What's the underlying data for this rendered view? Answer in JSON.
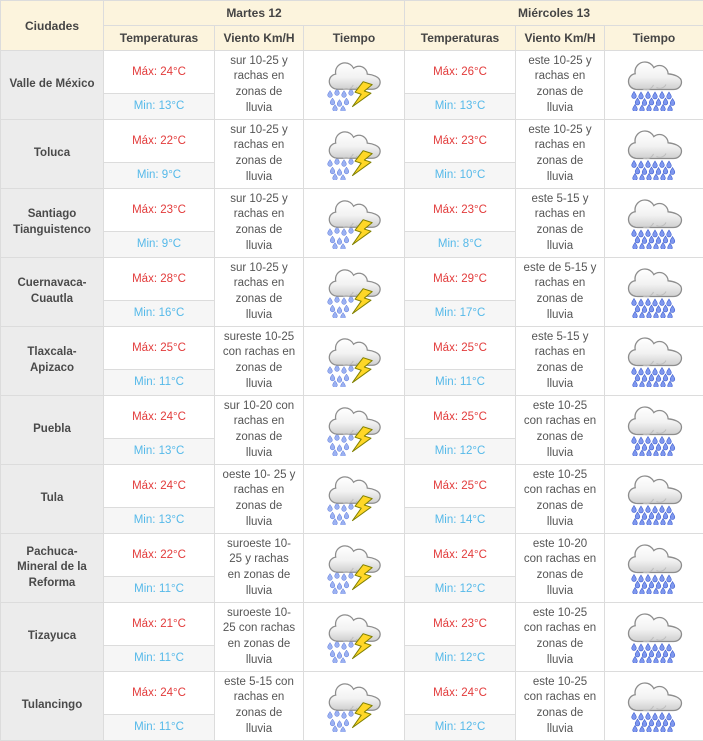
{
  "header": {
    "city": "Ciudades",
    "day_groups": [
      {
        "label": "Martes 12"
      },
      {
        "label": "Miércoles 13"
      }
    ],
    "sub_columns": [
      "Temperaturas",
      "Viento Km/H",
      "Tiempo"
    ]
  },
  "table": {
    "rows": [
      {
        "city": "Valle de México",
        "days": [
          {
            "max": "Máx: 24°C",
            "min": "Min: 13°C",
            "wind": "sur 10-25 y rachas en zonas de lluvia",
            "icon": "storm-rain-icon"
          },
          {
            "max": "Máx: 26°C",
            "min": "Min: 13°C",
            "wind": "este 10-25 y rachas en zonas de lluvia",
            "icon": "heavy-rain-icon"
          }
        ]
      },
      {
        "city": "Toluca",
        "days": [
          {
            "max": "Máx: 22°C",
            "min": "Min: 9°C",
            "wind": "sur 10-25 y rachas en zonas de lluvia",
            "icon": "storm-rain-icon"
          },
          {
            "max": "Máx: 23°C",
            "min": "Min: 10°C",
            "wind": "este 10-25 y rachas en zonas de lluvia",
            "icon": "heavy-rain-icon"
          }
        ]
      },
      {
        "city": "Santiago Tianguistenco",
        "days": [
          {
            "max": "Máx: 23°C",
            "min": "Min: 9°C",
            "wind": "sur 10-25 y rachas en zonas de lluvia",
            "icon": "storm-rain-icon"
          },
          {
            "max": "Máx: 23°C",
            "min": "Min: 8°C",
            "wind": "este 5-15 y rachas en zonas de lluvia",
            "icon": "heavy-rain-icon"
          }
        ]
      },
      {
        "city": "Cuernavaca-Cuautla",
        "days": [
          {
            "max": "Máx: 28°C",
            "min": "Min: 16°C",
            "wind": "sur 10-25 y rachas en zonas de lluvia",
            "icon": "storm-rain-icon"
          },
          {
            "max": "Máx: 29°C",
            "min": "Min: 17°C",
            "wind": "este de 5-15 y rachas en zonas de lluvia",
            "icon": "heavy-rain-icon"
          }
        ]
      },
      {
        "city": "Tlaxcala-Apizaco",
        "days": [
          {
            "max": "Máx: 25°C",
            "min": "Min: 11°C",
            "wind": "sureste 10-25 con rachas en zonas de lluvia",
            "icon": "storm-rain-icon"
          },
          {
            "max": "Máx: 25°C",
            "min": "Min: 11°C",
            "wind": "este 5-15 y rachas en zonas de lluvia",
            "icon": "heavy-rain-icon"
          }
        ]
      },
      {
        "city": "Puebla",
        "days": [
          {
            "max": "Máx: 24°C",
            "min": "Min: 13°C",
            "wind": "sur 10-20  con rachas en zonas de lluvia",
            "icon": "storm-rain-icon"
          },
          {
            "max": "Máx: 25°C",
            "min": "Min: 12°C",
            "wind": "este 10-25 con rachas en zonas de lluvia",
            "icon": "heavy-rain-icon"
          }
        ]
      },
      {
        "city": "Tula",
        "days": [
          {
            "max": "Máx: 24°C",
            "min": "Min: 13°C",
            "wind": "oeste 10- 25 y rachas en zonas de lluvia",
            "icon": "storm-rain-icon"
          },
          {
            "max": "Máx: 25°C",
            "min": "Min: 14°C",
            "wind": "este 10-25 con rachas en zonas de lluvia",
            "icon": "heavy-rain-icon"
          }
        ]
      },
      {
        "city": "Pachuca- Mineral de la Reforma",
        "days": [
          {
            "max": "Máx: 22°C",
            "min": "Min: 11°C",
            "wind": "suroeste 10-25 y rachas en zonas de lluvia",
            "icon": "storm-rain-icon"
          },
          {
            "max": "Máx: 24°C",
            "min": "Min: 12°C",
            "wind": "este 10-20 con rachas en zonas de lluvia",
            "icon": "heavy-rain-icon"
          }
        ]
      },
      {
        "city": "Tizayuca",
        "days": [
          {
            "max": "Máx: 21°C",
            "min": "Min: 11°C",
            "wind": "suroeste 10-25 con rachas en zonas de lluvia",
            "icon": "storm-rain-icon"
          },
          {
            "max": "Máx: 23°C",
            "min": "Min: 12°C",
            "wind": "este 10-25 con rachas en zonas de lluvia",
            "icon": "heavy-rain-icon"
          }
        ]
      },
      {
        "city": "Tulancingo",
        "days": [
          {
            "max": "Máx: 24°C",
            "min": "Min: 11°C",
            "wind": "este 5-15 con rachas en zonas de lluvia",
            "icon": "storm-rain-icon"
          },
          {
            "max": "Máx: 24°C",
            "min": "Min: 12°C",
            "wind": "este 10-25 con rachas en zonas de lluvia",
            "icon": "heavy-rain-icon"
          }
        ]
      }
    ]
  },
  "icons": {
    "storm_rain": "storm-rain-icon",
    "heavy_rain": "heavy-rain-icon"
  },
  "colors": {
    "header_bg": "#fcf4dd",
    "city_bg": "#ececec",
    "min_bg": "#f6f6f6",
    "border": "#dcdcdc",
    "max_red": "#e23b3b",
    "min_blue": "#55b9e9",
    "text": "#555555",
    "header_text": "#444444"
  }
}
